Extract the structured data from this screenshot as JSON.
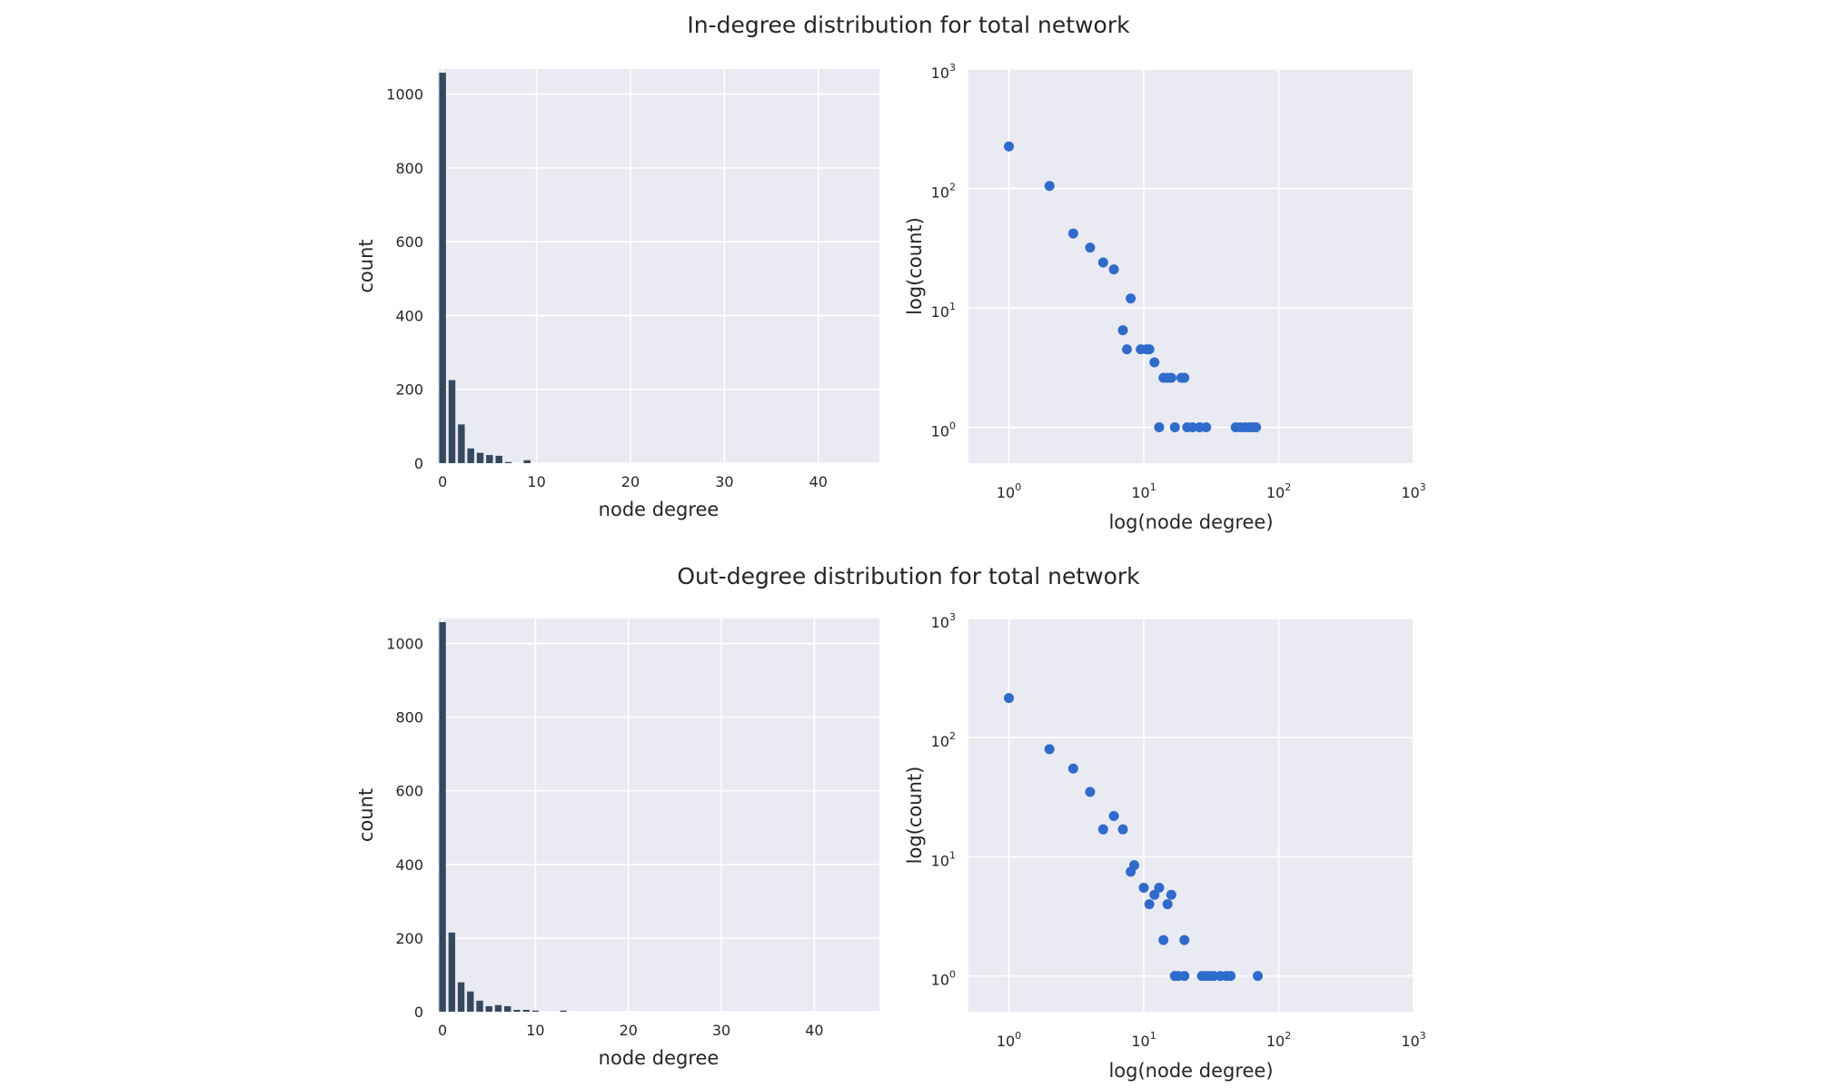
{
  "figures": [
    {
      "title": "In-degree distribution for total network",
      "histogram": {
        "type": "bar",
        "xlabel": "node degree",
        "ylabel": "count",
        "xlim": [
          -0.5,
          46.5
        ],
        "ylim": [
          0,
          1068
        ],
        "xticks": [
          0,
          10,
          20,
          30,
          40
        ],
        "yticks": [
          0,
          200,
          400,
          600,
          800,
          1000
        ],
        "bins": [
          0,
          1,
          2,
          3,
          4,
          5,
          6,
          7,
          8,
          9
        ],
        "values": [
          1058,
          225,
          105,
          40,
          28,
          22,
          20,
          3,
          0,
          8
        ]
      },
      "loglog": {
        "type": "scatter",
        "xlabel": "log(node degree)",
        "ylabel": "log(count)",
        "xscale": "log",
        "yscale": "log",
        "xlim_exp": [
          -0.3,
          3
        ],
        "ylim_exp": [
          -0.3,
          3
        ],
        "xticks": [
          {
            "base": "10",
            "exp": "0"
          },
          {
            "base": "10",
            "exp": "1"
          },
          {
            "base": "10",
            "exp": "2"
          },
          {
            "base": "10",
            "exp": "3"
          }
        ],
        "yticks": [
          {
            "base": "10",
            "exp": "0"
          },
          {
            "base": "10",
            "exp": "1"
          },
          {
            "base": "10",
            "exp": "2"
          },
          {
            "base": "10",
            "exp": "3"
          }
        ],
        "points": [
          [
            1,
            225
          ],
          [
            2,
            105
          ],
          [
            3,
            42
          ],
          [
            4,
            32
          ],
          [
            5,
            24
          ],
          [
            6,
            21
          ],
          [
            8,
            12
          ],
          [
            7,
            6.5
          ],
          [
            7.5,
            4.5
          ],
          [
            9.5,
            4.5
          ],
          [
            10.5,
            4.5
          ],
          [
            11,
            4.5
          ],
          [
            12,
            3.5
          ],
          [
            14,
            2.6
          ],
          [
            15,
            2.6
          ],
          [
            16,
            2.6
          ],
          [
            19,
            2.6
          ],
          [
            20,
            2.6
          ],
          [
            13,
            1
          ],
          [
            17,
            1
          ],
          [
            21,
            1
          ],
          [
            23,
            1
          ],
          [
            26,
            1
          ],
          [
            29,
            1
          ],
          [
            48,
            1
          ],
          [
            52,
            1
          ],
          [
            56,
            1
          ],
          [
            60,
            1
          ],
          [
            64,
            1
          ],
          [
            68,
            1
          ]
        ]
      }
    },
    {
      "title": "Out-degree distribution for total network",
      "histogram": {
        "type": "bar",
        "xlabel": "node degree",
        "ylabel": "count",
        "xlim": [
          -0.5,
          47
        ],
        "ylim": [
          0,
          1068
        ],
        "xticks": [
          0,
          10,
          20,
          30,
          40
        ],
        "yticks": [
          0,
          200,
          400,
          600,
          800,
          1000
        ],
        "bins": [
          0,
          1,
          2,
          3,
          4,
          5,
          6,
          7,
          8,
          9,
          10,
          13
        ],
        "values": [
          1058,
          215,
          80,
          55,
          30,
          15,
          18,
          15,
          5,
          5,
          3,
          3
        ]
      },
      "loglog": {
        "type": "scatter",
        "xlabel": "log(node degree)",
        "ylabel": "log(count)",
        "xscale": "log",
        "yscale": "log",
        "xlim_exp": [
          -0.3,
          3
        ],
        "ylim_exp": [
          -0.3,
          3
        ],
        "xticks": [
          {
            "base": "10",
            "exp": "0"
          },
          {
            "base": "10",
            "exp": "1"
          },
          {
            "base": "10",
            "exp": "2"
          },
          {
            "base": "10",
            "exp": "3"
          }
        ],
        "yticks": [
          {
            "base": "10",
            "exp": "0"
          },
          {
            "base": "10",
            "exp": "1"
          },
          {
            "base": "10",
            "exp": "2"
          },
          {
            "base": "10",
            "exp": "3"
          }
        ],
        "points": [
          [
            1,
            215
          ],
          [
            2,
            80
          ],
          [
            3,
            55
          ],
          [
            4,
            35
          ],
          [
            5,
            17
          ],
          [
            6,
            22
          ],
          [
            7,
            17
          ],
          [
            8,
            7.5
          ],
          [
            8.5,
            8.5
          ],
          [
            10,
            5.5
          ],
          [
            11,
            4
          ],
          [
            12,
            4.8
          ],
          [
            13,
            5.5
          ],
          [
            15,
            4
          ],
          [
            16,
            4.8
          ],
          [
            14,
            2
          ],
          [
            20,
            2
          ],
          [
            17,
            1
          ],
          [
            18,
            1
          ],
          [
            20,
            1
          ],
          [
            27,
            1
          ],
          [
            29,
            1
          ],
          [
            31,
            1
          ],
          [
            33,
            1
          ],
          [
            37,
            1
          ],
          [
            41,
            1
          ],
          [
            44,
            1
          ],
          [
            70,
            1
          ]
        ]
      }
    }
  ],
  "colors": {
    "panel_background": "#EAEAF2",
    "grid": "#FFFFFF",
    "bar": "#34495E",
    "point": "#2F6ACD",
    "text": "#262626"
  }
}
